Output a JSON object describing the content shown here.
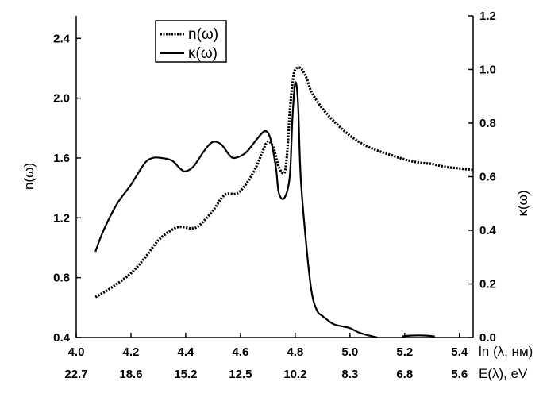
{
  "chart_data": {
    "type": "line",
    "x_axis": {
      "label": "ln (λ, нм)",
      "range": [
        4.0,
        5.45
      ],
      "ticks": [
        4.0,
        4.2,
        4.4,
        4.6,
        4.8,
        5.0,
        5.2,
        5.4
      ],
      "tick_labels": [
        "4.0",
        "4.2",
        "4.4",
        "4.6",
        "4.8",
        "5.0",
        "5.2",
        "5.4"
      ]
    },
    "energy_axis": {
      "label": "E(λ), eV",
      "tick_labels": [
        "22.7",
        "18.6",
        "15.2",
        "12.5",
        "10.2",
        "8.3",
        "6.8",
        "5.6"
      ]
    },
    "y_left": {
      "label": "n(ω)",
      "range": [
        0.4,
        2.55
      ],
      "ticks": [
        0.4,
        0.8,
        1.2,
        1.6,
        2.0,
        2.4
      ],
      "tick_labels": [
        "0.4",
        "0.8",
        "1.2",
        "1.6",
        "2.0",
        "2.4"
      ]
    },
    "y_right": {
      "label": "κ(ω)",
      "range": [
        0.0,
        1.2
      ],
      "ticks": [
        0.0,
        0.2,
        0.4,
        0.6,
        0.8,
        1.0,
        1.2
      ],
      "tick_labels": [
        "0.0",
        "0.2",
        "0.4",
        "0.6",
        "0.8",
        "1.0",
        "1.2"
      ]
    },
    "legend_placement": "top-center",
    "grid": false,
    "series": [
      {
        "name": "n(ω)",
        "style": "dotted",
        "axis": "left",
        "x": [
          4.07,
          4.1,
          4.15,
          4.2,
          4.25,
          4.3,
          4.35,
          4.38,
          4.42,
          4.45,
          4.5,
          4.53,
          4.55,
          4.58,
          4.6,
          4.63,
          4.66,
          4.68,
          4.7,
          4.72,
          4.74,
          4.76,
          4.77,
          4.78,
          4.79,
          4.8,
          4.82,
          4.84,
          4.86,
          4.9,
          4.95,
          5.0,
          5.05,
          5.1,
          5.15,
          5.2,
          5.25,
          5.3,
          5.35,
          5.4,
          5.45
        ],
        "y": [
          0.67,
          0.7,
          0.76,
          0.83,
          0.93,
          1.05,
          1.12,
          1.14,
          1.13,
          1.15,
          1.25,
          1.33,
          1.36,
          1.36,
          1.38,
          1.45,
          1.55,
          1.64,
          1.71,
          1.67,
          1.54,
          1.5,
          1.62,
          1.9,
          2.1,
          2.19,
          2.2,
          2.14,
          2.04,
          1.93,
          1.83,
          1.75,
          1.69,
          1.65,
          1.62,
          1.59,
          1.57,
          1.56,
          1.54,
          1.53,
          1.52
        ]
      },
      {
        "name": "κ(ω)",
        "style": "solid",
        "axis": "right",
        "x": [
          4.07,
          4.1,
          4.15,
          4.2,
          4.25,
          4.28,
          4.31,
          4.35,
          4.38,
          4.4,
          4.43,
          4.47,
          4.5,
          4.53,
          4.56,
          4.58,
          4.62,
          4.66,
          4.69,
          4.71,
          4.73,
          4.74,
          4.76,
          4.78,
          4.79,
          4.8,
          4.81,
          4.82,
          4.84,
          4.86,
          4.88,
          4.9,
          4.94,
          4.98,
          5.0,
          5.03,
          5.06,
          5.08,
          5.1
        ],
        "y": [
          0.32,
          0.4,
          0.5,
          0.57,
          0.65,
          0.67,
          0.67,
          0.66,
          0.63,
          0.62,
          0.64,
          0.7,
          0.73,
          0.72,
          0.68,
          0.67,
          0.69,
          0.74,
          0.77,
          0.74,
          0.63,
          0.54,
          0.52,
          0.6,
          0.82,
          0.95,
          0.88,
          0.6,
          0.35,
          0.17,
          0.1,
          0.08,
          0.05,
          0.04,
          0.035,
          0.02,
          0.01,
          0.005,
          0.0
        ]
      },
      {
        "name": "",
        "style": "solid",
        "axis": "right",
        "x": [
          5.19,
          5.22,
          5.25,
          5.28,
          5.31
        ],
        "y": [
          0.004,
          0.007,
          0.008,
          0.007,
          0.004
        ]
      }
    ]
  }
}
